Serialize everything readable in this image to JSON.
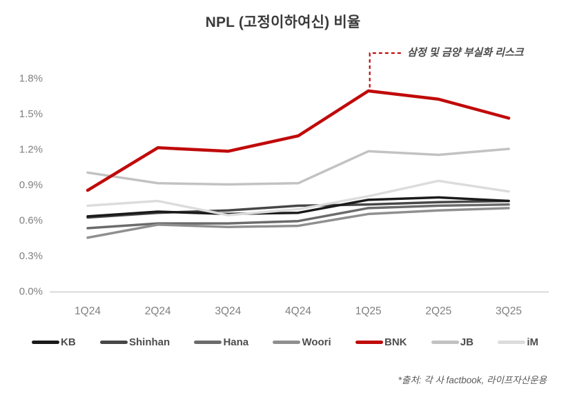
{
  "page": {
    "source_note": "*출처: 각 사 factbook, 라이프자산운용"
  },
  "colors": {
    "accent_red": "#c00a0a",
    "axis_line": "#d9d9d9",
    "tick_text": "#7f7f7f",
    "annotation_text": "#4a4a4a",
    "legend_text": "#4d4d4d"
  },
  "chart_data": {
    "type": "line",
    "title": "NPL (고정이하여신) 비율",
    "categories": [
      "1Q24",
      "2Q24",
      "3Q24",
      "4Q24",
      "1Q25",
      "2Q25",
      "3Q25"
    ],
    "series": [
      {
        "name": "KB",
        "color": "#1a1a1a",
        "values": [
          0.63,
          0.67,
          0.65,
          0.66,
          0.77,
          0.79,
          0.76
        ]
      },
      {
        "name": "Shinhan",
        "color": "#474747",
        "values": [
          0.62,
          0.66,
          0.68,
          0.72,
          0.73,
          0.75,
          0.76
        ]
      },
      {
        "name": "Hana",
        "color": "#6b6b6b",
        "values": [
          0.53,
          0.57,
          0.57,
          0.59,
          0.7,
          0.72,
          0.73
        ]
      },
      {
        "name": "Woori",
        "color": "#8f8f8f",
        "values": [
          0.45,
          0.56,
          0.54,
          0.55,
          0.65,
          0.68,
          0.7
        ]
      },
      {
        "name": "BNK",
        "color": "#c00a0a",
        "values": [
          0.85,
          1.21,
          1.18,
          1.31,
          1.69,
          1.62,
          1.46
        ]
      },
      {
        "name": "JB",
        "color": "#c2c2c2",
        "values": [
          1.0,
          0.91,
          0.9,
          0.91,
          1.18,
          1.15,
          1.2
        ]
      },
      {
        "name": "iM",
        "color": "#dcdcdc",
        "values": [
          0.72,
          0.76,
          0.64,
          0.69,
          0.8,
          0.93,
          0.84
        ]
      }
    ],
    "y_ticks": [
      "0.0%",
      "0.3%",
      "0.6%",
      "0.9%",
      "1.2%",
      "1.5%",
      "1.8%"
    ],
    "ylim": [
      0,
      1.8
    ],
    "grid": false,
    "legend_position": "bottom",
    "annotation": "삼정 및 금양 부실화 리스크",
    "annotation_anchor": {
      "series": "BNK",
      "category": "1Q25"
    },
    "draw_order": [
      "JB",
      "Hana",
      "Woori",
      "Shinhan",
      "KB",
      "iM",
      "BNK"
    ]
  }
}
